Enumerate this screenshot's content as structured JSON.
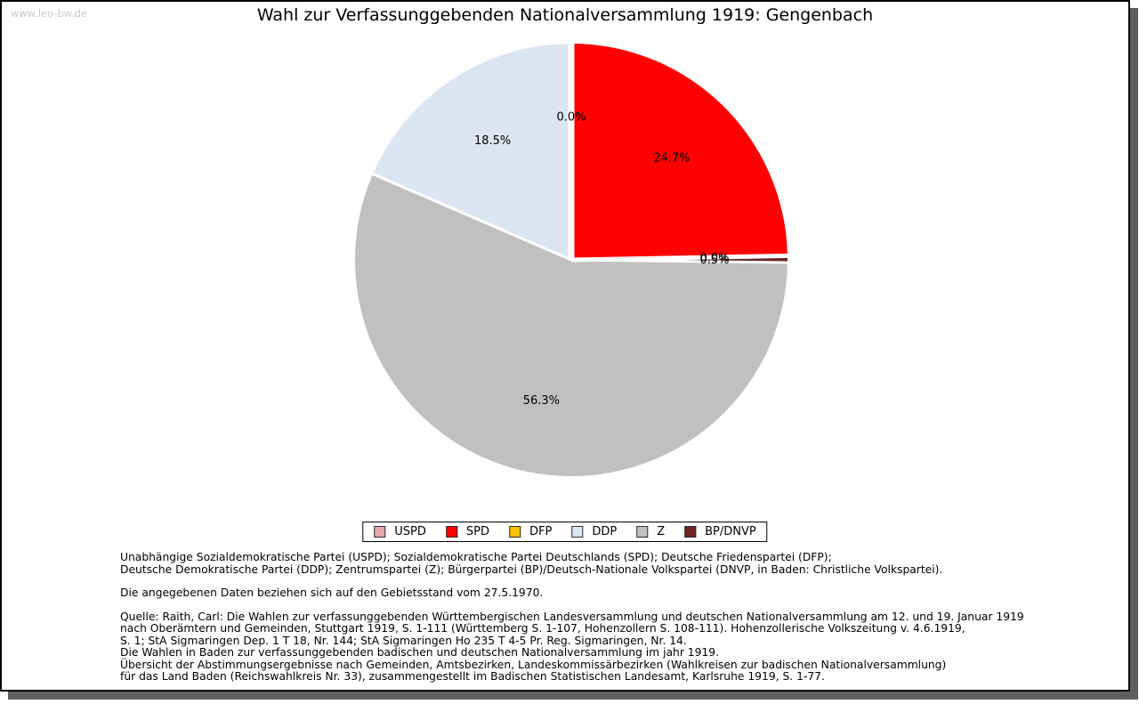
{
  "header": {
    "watermark": "www.leo-bw.de"
  },
  "chart_data": {
    "type": "pie",
    "title": "Wahl zur Verfassunggebenden Nationalversammlung 1919: Gengenbach",
    "unit": "percent",
    "direction": "clockwise",
    "start_angle_deg": 0,
    "legend_position": "bottom",
    "slices": [
      {
        "party": "USPD",
        "value": 0.0,
        "label": "0.0%",
        "color": "#e4a6ac"
      },
      {
        "party": "SPD",
        "value": 24.7,
        "label": "24.7%",
        "color": "#fe0000"
      },
      {
        "party": "DFP",
        "value": 0.0,
        "label": "0.0%",
        "color": "#ffc000"
      },
      {
        "party": "BP/DNVP",
        "value": 0.5,
        "label": "0.5%",
        "color": "#6b2523"
      },
      {
        "party": "Z",
        "value": 56.3,
        "label": "56.3%",
        "color": "#c0c0c0"
      },
      {
        "party": "DDP",
        "value": 18.5,
        "label": "18.5%",
        "color": "#dce6f2"
      }
    ],
    "legend": [
      {
        "party": "USPD",
        "color": "#e4a6ac"
      },
      {
        "party": "SPD",
        "color": "#fe0000"
      },
      {
        "party": "DFP",
        "color": "#ffc000"
      },
      {
        "party": "DDP",
        "color": "#dce6f2"
      },
      {
        "party": "Z",
        "color": "#c0c0c0"
      },
      {
        "party": "BP/DNVP",
        "color": "#6b2523"
      }
    ]
  },
  "footnotes": {
    "parties": [
      "Unabhängige Sozialdemokratische Partei (USPD); Sozialdemokratische Partei Deutschlands (SPD); Deutsche Friedenspartei (DFP);",
      "Deutsche Demokratische Partei (DDP); Zentrumspartei (Z); Bürgerpartei (BP)/Deutsch-Nationale Volkspartei (DNVP, in Baden: Christliche Volkspartei)."
    ],
    "gebietsstand": "Die angegebenen Daten beziehen sich auf den Gebietsstand vom 27.5.1970.",
    "quelle": [
      "Quelle: Raith, Carl: Die Wahlen zur verfassunggebenden Württembergischen Landesversammlung und deutschen Nationalversammlung am 12. und 19. Januar 1919",
      "nach Oberämtern und Gemeinden, Stuttgart 1919, S. 1-111 (Württemberg S. 1-107, Hohenzollern S. 108-111). Hohenzollerische Volkszeitung v. 4.6.1919,",
      "S. 1; StA Sigmaringen Dep. 1 T 18, Nr. 144; StA Sigmaringen Ho 235 T 4-5 Pr. Reg. Sigmaringen, Nr. 14.",
      "Die Wahlen in Baden zur verfassunggebenden badischen und deutschen Nationalversammlung im jahr 1919.",
      "Übersicht der Abstimmungsergebnisse nach Gemeinden, Amtsbezirken, Landeskommissärbezirken (Wahlkreisen zur badischen Nationalversammlung)",
      "für das Land Baden (Reichswahlkreis Nr. 33), zusammengestellt im Badischen Statistischen Landesamt, Karlsruhe 1919, S. 1-77."
    ]
  }
}
